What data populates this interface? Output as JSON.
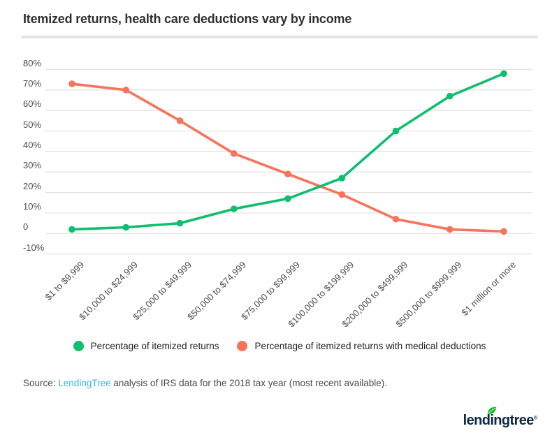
{
  "chart_data": {
    "type": "line",
    "title": "Itemized returns, health care deductions vary by income",
    "categories": [
      "$1 to $9,999",
      "$10,000 to $24,999",
      "$25,000 to $49,999",
      "$50,000 to $74,999",
      "$75,000 to $99,999",
      "$100,000 to $199,999",
      "$200,000 to $499,999",
      "$500,000 to $999,999",
      "$1 million or more"
    ],
    "series": [
      {
        "name": "Percentage of itemized returns",
        "color": "#10BE6E",
        "values": [
          2,
          3,
          5,
          12,
          17,
          27,
          50,
          67,
          78
        ]
      },
      {
        "name": "Percentage of itemized returns with medical deductions",
        "color": "#F9735B",
        "values": [
          73,
          70,
          55,
          39,
          29,
          19,
          7,
          2,
          1
        ]
      }
    ],
    "yticks": [
      {
        "value": 80,
        "label": "80%"
      },
      {
        "value": 70,
        "label": "70%"
      },
      {
        "value": 60,
        "label": "60%"
      },
      {
        "value": 50,
        "label": "50%"
      },
      {
        "value": 40,
        "label": "40%"
      },
      {
        "value": 30,
        "label": "30%"
      },
      {
        "value": 20,
        "label": "20%"
      },
      {
        "value": 10,
        "label": "10%"
      },
      {
        "value": 0,
        "label": "0"
      },
      {
        "value": -10,
        "label": "-10%"
      }
    ],
    "ylim": [
      -10,
      80
    ],
    "grid": true,
    "legend_position": "bottom"
  },
  "source": {
    "prefix": "Source: ",
    "link_text": "LendingTree",
    "suffix": " analysis of IRS data for the 2018 tax year (most recent available)."
  },
  "logo": {
    "part1": "lend",
    "dotted": "i",
    "part2": "ngtree",
    "registered": "®"
  },
  "colors": {
    "green": "#10BE6E",
    "orange": "#F9735B",
    "gridline": "#E1E1E1",
    "title_rule": "#E4E4E4",
    "link_blue": "#36B5E8",
    "logo_navy": "#0C2740",
    "leaf_green": "#0BC024"
  }
}
